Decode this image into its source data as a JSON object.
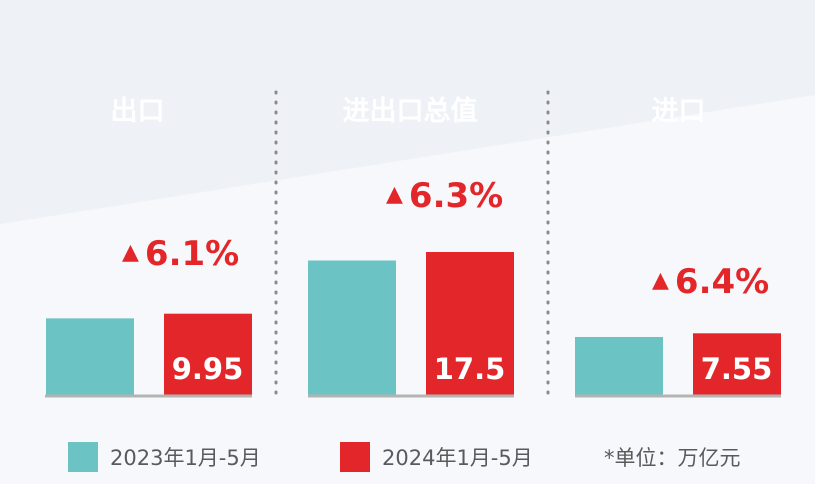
{
  "colors": {
    "series_2023": "#6cc3c4",
    "series_2024": "#e3262a",
    "label_bg": "#3b5fd0",
    "axis": "#b3b3b3",
    "divider": "#8a8a8a"
  },
  "legend": {
    "series_2023": "2023年1月-5月",
    "series_2024": "2024年1月-5月",
    "unit": "*单位：万亿元"
  },
  "chart_data": {
    "type": "bar",
    "categories": [
      "出口",
      "进出口总值",
      "进口"
    ],
    "series": [
      {
        "name": "2023年1月-5月",
        "values": [
          9.38,
          16.46,
          7.1
        ]
      },
      {
        "name": "2024年1月-5月",
        "values": [
          9.95,
          17.5,
          7.55
        ]
      }
    ],
    "value_labels": [
      "9.95",
      "17.5",
      "7.55"
    ],
    "growth": [
      {
        "arrow": "▲",
        "text": "6.1%"
      },
      {
        "arrow": "▲",
        "text": "6.3%"
      },
      {
        "arrow": "▲",
        "text": "6.4%"
      }
    ],
    "ylim": [
      0,
      17.5
    ],
    "grid": false,
    "legend_position": "bottom"
  }
}
